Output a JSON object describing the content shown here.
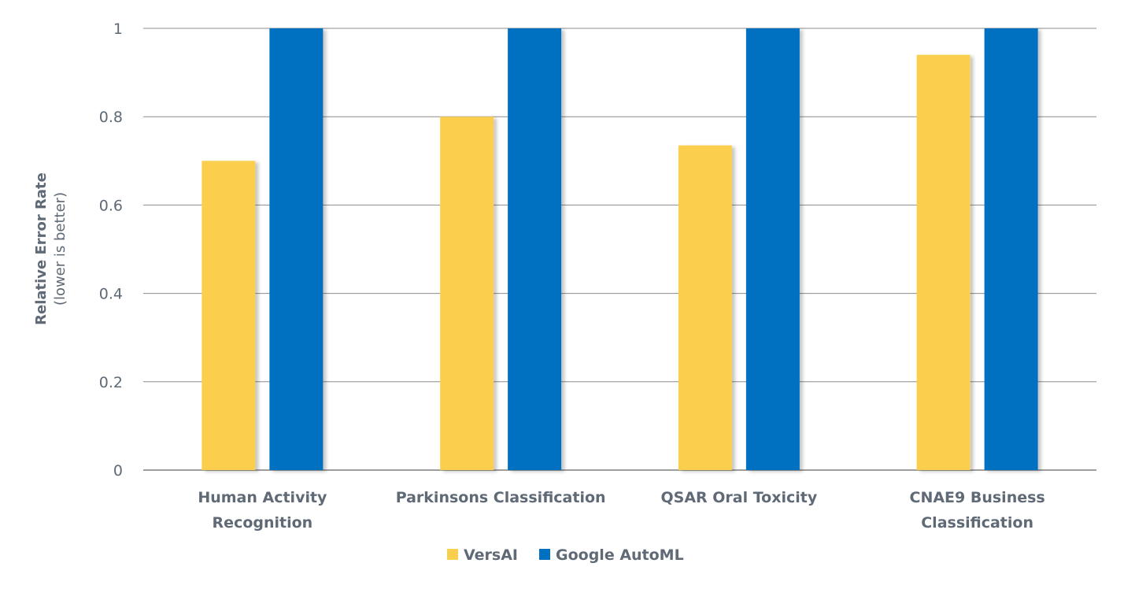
{
  "chart_data": {
    "type": "bar",
    "title": "",
    "xlabel": "",
    "ylabel": "Relative Error Rate",
    "ylabel_sub": "(lower is better)",
    "categories": [
      [
        "Human Activity",
        "Recognition"
      ],
      [
        "Parkinsons Classification"
      ],
      [
        "QSAR Oral Toxicity"
      ],
      [
        "CNAE9 Business",
        "Classification"
      ]
    ],
    "series": [
      {
        "name": "VersAI",
        "color": "#FBCF4E",
        "values": [
          0.7,
          0.8,
          0.735,
          0.94
        ]
      },
      {
        "name": "Google AutoML",
        "color": "#0070C0",
        "values": [
          1.0,
          1.0,
          1.0,
          1.0
        ]
      }
    ],
    "ylim": [
      0,
      1
    ],
    "yticks": [
      0,
      0.2,
      0.4,
      0.6,
      0.8,
      1
    ],
    "ytick_labels": [
      "0",
      "0.2",
      "0.4",
      "0.6",
      "0.8",
      "1"
    ],
    "grid": true,
    "legend_position": "bottom-center"
  }
}
